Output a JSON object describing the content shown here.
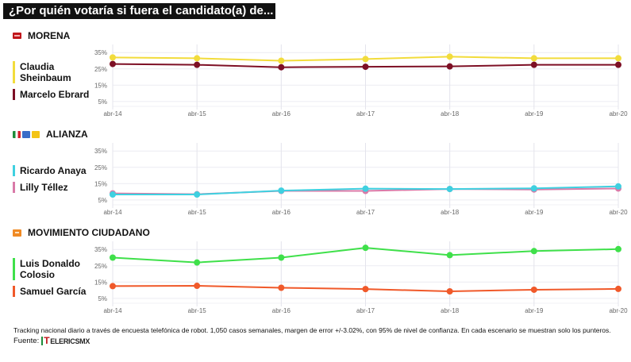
{
  "title": "¿Por quién votaría si fuera el candidato(a) de... ?",
  "footnote": "Tracking nacional diario a través de encuesta telefónica de robot. 1,050 casos semanales, margen de error +/-3.02%, con 95% de nivel de confianza. En cada escenario se muestran solo los punteros.",
  "source_label": "Fuente:",
  "source_logo": {
    "prefix": "T",
    "text": "ELERICSMX",
    "icon": "telericsmx-logo"
  },
  "sections": [
    {
      "name": "MORENA",
      "icon": "morena-logo-icon"
    },
    {
      "name": "ALIANZA",
      "icon": "pri-pan-prd-logos-icon"
    },
    {
      "name": "MOVIMIENTO CIUDADANO",
      "icon": "movimiento-ciudadano-logo-icon"
    }
  ],
  "chart_data": [
    {
      "type": "line",
      "title": "MORENA",
      "categories": [
        "abr-14",
        "abr-15",
        "abr-16",
        "abr-17",
        "abr-18",
        "abr-19",
        "abr-20"
      ],
      "yticks": [
        "35%",
        "25%",
        "15%",
        "5%"
      ],
      "ylim": [
        2,
        39
      ],
      "grid": true,
      "legend_position": "left",
      "series": [
        {
          "name": "Claudia Sheinbaum",
          "color": "#f2dc3c",
          "values": [
            32.0,
            31.5,
            30.0,
            31.0,
            32.5,
            31.5,
            31.5
          ]
        },
        {
          "name": "Marcelo Ebrard",
          "color": "#7d0f25",
          "values": [
            28.0,
            27.5,
            26.0,
            26.3,
            26.5,
            27.5,
            27.5
          ]
        }
      ]
    },
    {
      "type": "line",
      "title": "ALIANZA",
      "categories": [
        "abr-14",
        "abr-15",
        "abr-16",
        "abr-17",
        "abr-18",
        "abr-19",
        "abr-20"
      ],
      "yticks": [
        "35%",
        "25%",
        "15%",
        "5%"
      ],
      "ylim": [
        2,
        39
      ],
      "grid": true,
      "legend_position": "left",
      "series": [
        {
          "name": "Lilly Téllez",
          "color": "#d97aa8",
          "values": [
            9.0,
            8.5,
            10.5,
            10.5,
            11.7,
            11.4,
            12.0
          ]
        },
        {
          "name": "Ricardo Anaya",
          "color": "#3fd0e0",
          "values": [
            8.3,
            8.3,
            10.7,
            11.9,
            11.7,
            12.1,
            13.3
          ]
        }
      ]
    },
    {
      "type": "line",
      "title": "MOVIMIENTO CIUDADANO",
      "categories": [
        "abr-14",
        "abr-15",
        "abr-16",
        "abr-17",
        "abr-18",
        "abr-19",
        "abr-20"
      ],
      "yticks": [
        "35%",
        "25%",
        "15%",
        "5%"
      ],
      "ylim": [
        2,
        39
      ],
      "grid": true,
      "legend_position": "left",
      "series": [
        {
          "name": "Luis Donaldo Colosio",
          "color": "#3fe04a",
          "values": [
            30.0,
            27.0,
            30.0,
            36.0,
            31.5,
            34.0,
            35.2
          ]
        },
        {
          "name": "Samuel García",
          "color": "#f0592a",
          "values": [
            12.5,
            12.7,
            11.5,
            10.7,
            9.3,
            10.3,
            10.8
          ]
        }
      ]
    }
  ],
  "legends": [
    [
      {
        "label": "Claudia Sheinbaum",
        "color": "#f2dc3c"
      },
      {
        "label": "Marcelo Ebrard",
        "color": "#7d0f25"
      }
    ],
    [
      {
        "label": "Ricardo Anaya",
        "color": "#3fd0e0"
      },
      {
        "label": "Lilly Téllez",
        "color": "#d97aa8"
      }
    ],
    [
      {
        "label": "Luis Donaldo Colosio",
        "color": "#3fe04a"
      },
      {
        "label": "Samuel García",
        "color": "#f0592a"
      }
    ]
  ]
}
